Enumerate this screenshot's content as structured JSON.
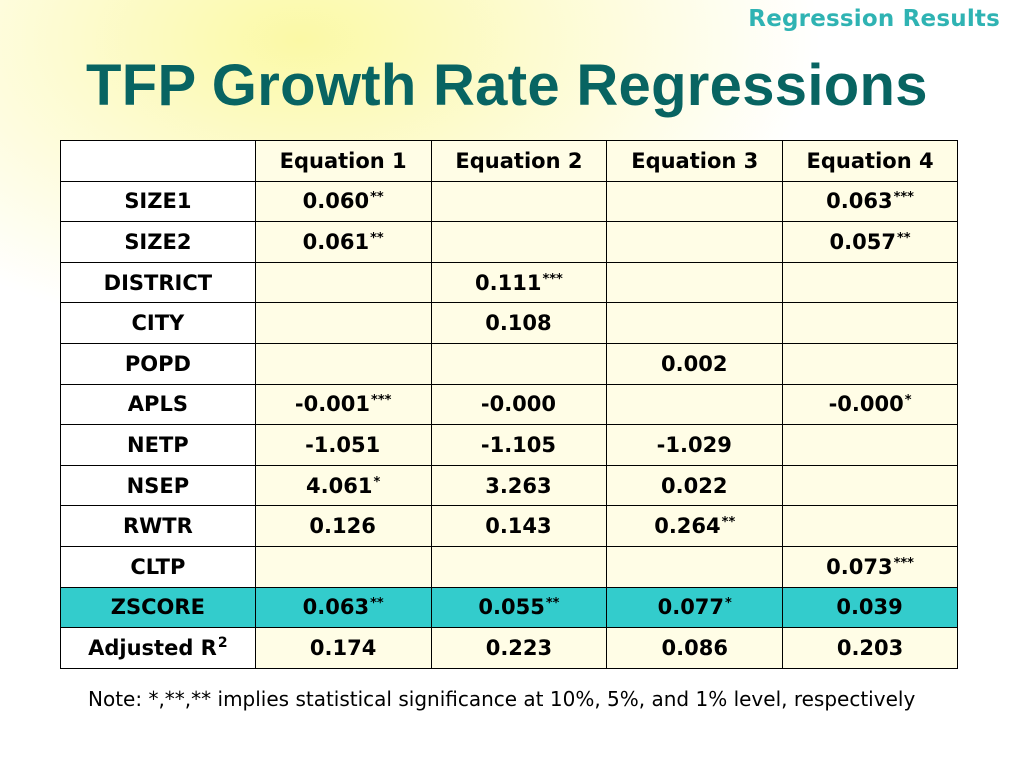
{
  "slide": {
    "section_label": "Regression Results",
    "title": "TFP Growth Rate Regressions"
  },
  "table": {
    "headers": [
      "",
      "Equation 1",
      "Equation 2",
      "Equation 3",
      "Equation 4"
    ],
    "rows": [
      {
        "label": "SIZE1",
        "cells": [
          {
            "v": "0.060",
            "s": "**"
          },
          {
            "v": "",
            "s": ""
          },
          {
            "v": "",
            "s": ""
          },
          {
            "v": "0.063",
            "s": "***"
          }
        ]
      },
      {
        "label": "SIZE2",
        "cells": [
          {
            "v": "0.061",
            "s": "**"
          },
          {
            "v": "",
            "s": ""
          },
          {
            "v": "",
            "s": ""
          },
          {
            "v": "0.057",
            "s": "**"
          }
        ]
      },
      {
        "label": "DISTRICT",
        "cells": [
          {
            "v": "",
            "s": ""
          },
          {
            "v": "0.111",
            "s": "***"
          },
          {
            "v": "",
            "s": ""
          },
          {
            "v": "",
            "s": ""
          }
        ]
      },
      {
        "label": "CITY",
        "cells": [
          {
            "v": "",
            "s": ""
          },
          {
            "v": "0.108",
            "s": ""
          },
          {
            "v": "",
            "s": ""
          },
          {
            "v": "",
            "s": ""
          }
        ]
      },
      {
        "label": "POPD",
        "cells": [
          {
            "v": "",
            "s": ""
          },
          {
            "v": "",
            "s": ""
          },
          {
            "v": "0.002",
            "s": ""
          },
          {
            "v": "",
            "s": ""
          }
        ]
      },
      {
        "label": "APLS",
        "cells": [
          {
            "v": "-0.001",
            "s": "***"
          },
          {
            "v": "-0.000",
            "s": ""
          },
          {
            "v": "",
            "s": ""
          },
          {
            "v": "-0.000",
            "s": "*"
          }
        ]
      },
      {
        "label": "NETP",
        "cells": [
          {
            "v": "-1.051",
            "s": ""
          },
          {
            "v": "-1.105",
            "s": ""
          },
          {
            "v": "-1.029",
            "s": ""
          },
          {
            "v": "",
            "s": ""
          }
        ]
      },
      {
        "label": "NSEP",
        "cells": [
          {
            "v": "4.061",
            "s": "*"
          },
          {
            "v": "3.263",
            "s": ""
          },
          {
            "v": "0.022",
            "s": ""
          },
          {
            "v": "",
            "s": ""
          }
        ]
      },
      {
        "label": "RWTR",
        "cells": [
          {
            "v": "0.126",
            "s": ""
          },
          {
            "v": "0.143",
            "s": ""
          },
          {
            "v": "0.264",
            "s": "**"
          },
          {
            "v": "",
            "s": ""
          }
        ]
      },
      {
        "label": "CLTP",
        "cells": [
          {
            "v": "",
            "s": ""
          },
          {
            "v": "",
            "s": ""
          },
          {
            "v": "",
            "s": ""
          },
          {
            "v": "0.073",
            "s": "***"
          }
        ]
      },
      {
        "label": "ZSCORE",
        "highlight": true,
        "cells": [
          {
            "v": "0.063",
            "s": "**"
          },
          {
            "v": "0.055",
            "s": "**"
          },
          {
            "v": "0.077",
            "s": "*"
          },
          {
            "v": "0.039",
            "s": ""
          }
        ]
      }
    ],
    "r2_row": {
      "label": "Adjusted R",
      "label_sup": "2",
      "cells": [
        "0.174",
        "0.223",
        "0.086",
        "0.203"
      ]
    }
  },
  "note": "Note: *,**,** implies statistical significance at 10%, 5%, and 1% level, respectively",
  "colors": {
    "title": "#086462",
    "section_label": "#2fb3b3",
    "highlight_row": "#33cccc",
    "cell_fill": "#fffde6"
  }
}
